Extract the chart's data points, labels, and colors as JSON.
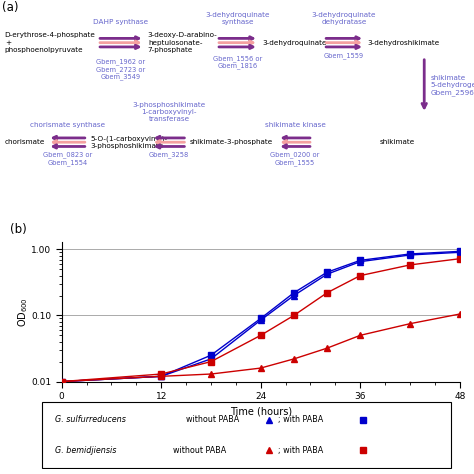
{
  "panel_a": {
    "arrow_color_dark": "#7B2D8B",
    "arrow_color_light": "#F4A0A0",
    "gene_color": "#6666CC",
    "enzyme_color": "#6666CC",
    "background": "#FFFFFF"
  },
  "panel_b": {
    "xlabel": "Time (hours)",
    "ylabel": "OD",
    "ylabel_sub": "600",
    "xlim": [
      0,
      48
    ],
    "xticks": [
      0,
      12,
      24,
      36,
      48
    ],
    "yticks": [
      0.01,
      0.1,
      1.0
    ],
    "ytick_labels": [
      "0.01",
      "0.10",
      "1.00"
    ],
    "grid_color": "#AAAAAA",
    "Gs_with_PABA_x": [
      0,
      12,
      18,
      24,
      28,
      32,
      36,
      42,
      48
    ],
    "Gs_with_PABA_y": [
      0.01,
      0.012,
      0.025,
      0.09,
      0.22,
      0.45,
      0.68,
      0.85,
      0.93
    ],
    "Gs_without_PABA_x": [
      0,
      12,
      18,
      24,
      28,
      32,
      36,
      42,
      48
    ],
    "Gs_without_PABA_y": [
      0.01,
      0.012,
      0.022,
      0.085,
      0.2,
      0.42,
      0.65,
      0.82,
      0.9
    ],
    "Gb_with_PABA_x": [
      0,
      12,
      18,
      24,
      28,
      32,
      36,
      42,
      48
    ],
    "Gb_with_PABA_y": [
      0.01,
      0.013,
      0.02,
      0.05,
      0.1,
      0.22,
      0.4,
      0.58,
      0.72
    ],
    "Gb_without_PABA_x": [
      0,
      12,
      18,
      24,
      28,
      32,
      36,
      42,
      48
    ],
    "Gb_without_PABA_y": [
      0.01,
      0.012,
      0.013,
      0.016,
      0.022,
      0.032,
      0.05,
      0.075,
      0.105
    ],
    "blue": "#0000CC",
    "red": "#CC0000"
  }
}
